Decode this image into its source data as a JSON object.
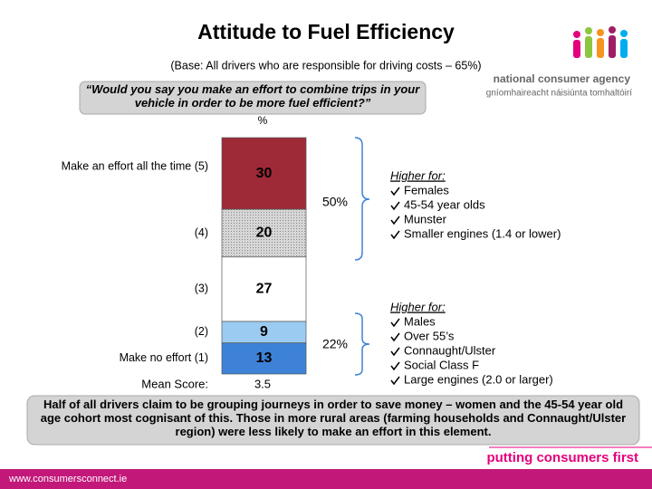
{
  "chart_data": {
    "type": "stacked-bar",
    "title": "Attitude to Fuel Efficiency",
    "subtitle": "(Base:  All drivers who are responsible for driving costs – 65%)",
    "question": "“Would you say you make an effort to combine trips in your vehicle in order to be more fuel efficient?”",
    "unit_label": "%",
    "categories": [
      "Make an effort all the time (5)",
      "(4)",
      "(3)",
      "(2)",
      "Make no effort (1)"
    ],
    "values": [
      30,
      20,
      27,
      9,
      13
    ],
    "colors": [
      "#9e2a37",
      "#c8c8c8",
      "#ffffff",
      "#9ccbf2",
      "#3d82d6"
    ],
    "mean_score_label": "Mean Score:",
    "mean_score": 3.5,
    "annotations": [
      "50%",
      "22%"
    ],
    "callouts": [
      {
        "heading": "Higher for:",
        "items": [
          "Females",
          "45-54 year olds",
          "Munster",
          "Smaller engines (1.4 or lower)"
        ]
      },
      {
        "heading": "Higher for:",
        "items": [
          "Males",
          "Over 55’s",
          "Connaught/Ulster",
          "Social Class F",
          "Large engines (2.0 or larger)"
        ]
      }
    ],
    "summary": "Half of all drivers claim to be grouping journeys in order to save money – women and the 45-54 year old age cohort most cognisant of this.  Those in more rural areas (farming households and Connaught/Ulster region) were less likely to make an effort in this element."
  },
  "branding": {
    "agency": "national consumer agency",
    "agency_irish": "gníomhaireacht náisiúnta tomhaltóirí",
    "tagline": "putting consumers first",
    "website": "www.consumersconnect.ie"
  }
}
